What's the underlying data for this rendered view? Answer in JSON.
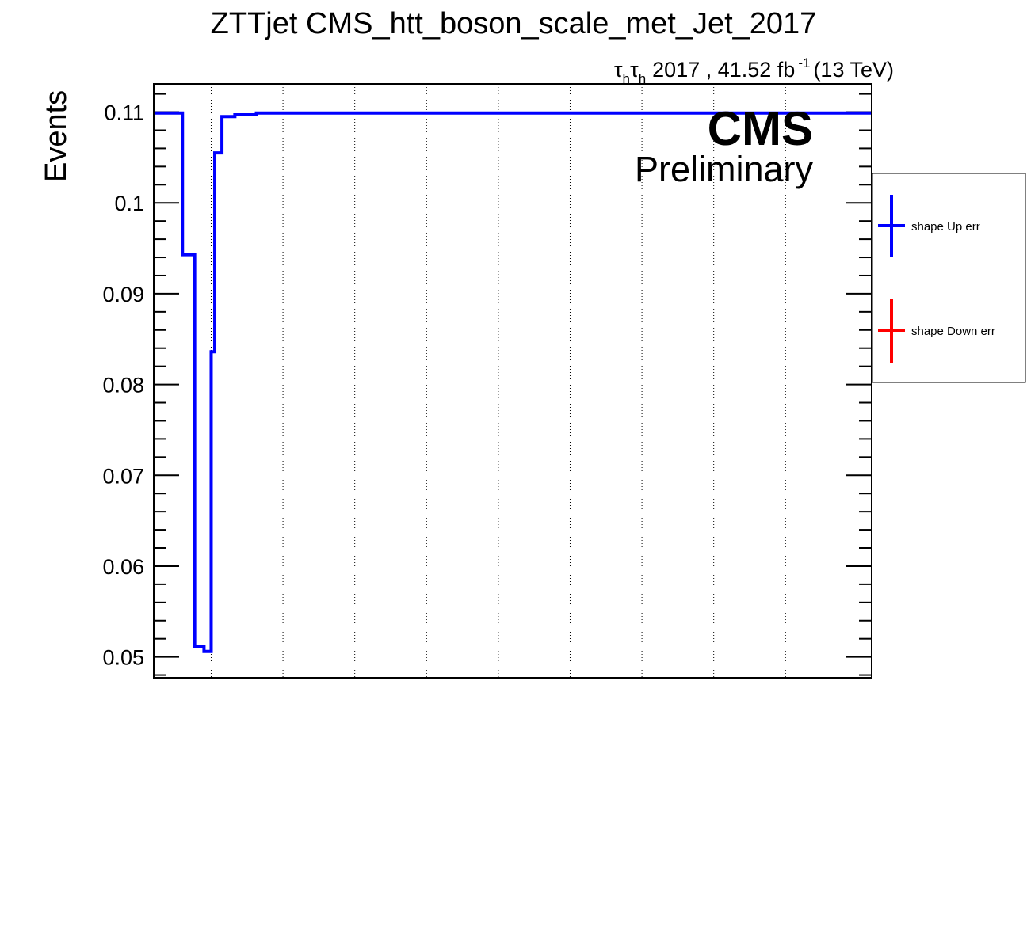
{
  "chart_data": {
    "type": "line",
    "title": "ZTTjet CMS_htt_boson_scale_met_Jet_2017",
    "lumi": {
      "channel_prefix": "τ",
      "channel_sub": "h",
      "text": "2017 , 41.52 fb",
      "superscript": "-1",
      "energy": "(13 TeV)"
    },
    "cms_label": "CMS",
    "prelim_label": "Preliminary",
    "ylabel": "Events",
    "xlabel": "",
    "ylim": [
      0.0477,
      0.1131
    ],
    "xlim": [
      0,
      1
    ],
    "grid_x": true,
    "yticks_major": [
      0.05,
      0.06,
      0.07,
      0.08,
      0.09,
      0.1,
      0.11
    ],
    "ytick_labels": [
      "0.05",
      "0.06",
      "0.07",
      "0.08",
      "0.09",
      "0.1",
      "0.11"
    ],
    "series": [
      {
        "name": "shape Up err",
        "color": "#0000ff",
        "bin_edges": [
          0,
          0.04,
          0.057,
          0.07,
          0.08,
          0.085,
          0.095,
          0.113,
          0.143,
          1.0
        ],
        "values": [
          0.1099,
          0.0943,
          0.0511,
          0.0506,
          0.0836,
          0.1055,
          0.1095,
          0.1097,
          0.1099
        ]
      },
      {
        "name": "shape Down err",
        "color": "#ff0000",
        "bin_edges": [],
        "values": []
      }
    ],
    "legend": {
      "placement": "right",
      "entries": [
        {
          "label": "shape Up err",
          "color": "#0000ff"
        },
        {
          "label": "shape Down err",
          "color": "#ff0000"
        }
      ]
    }
  }
}
